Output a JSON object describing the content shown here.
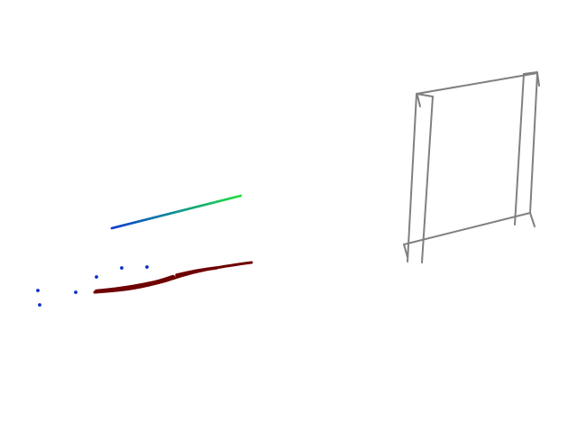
{
  "scene": {
    "background": "#ffffff",
    "colors": {
      "gradient_line_start": "#0a3ad0",
      "gradient_line_mid": "#0a8a9a",
      "gradient_line_end": "#22e03a",
      "dark_red_stroke": "#6e0000",
      "blue_points": "#0a2ec8",
      "frame_lines": "#808080"
    }
  }
}
